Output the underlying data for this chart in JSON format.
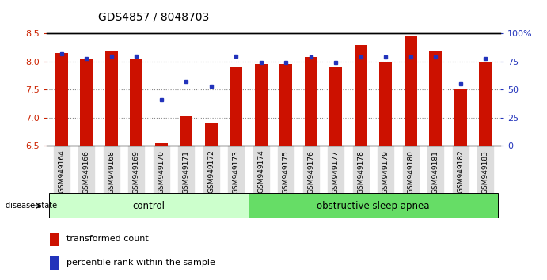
{
  "title": "GDS4857 / 8048703",
  "samples": [
    "GSM949164",
    "GSM949166",
    "GSM949168",
    "GSM949169",
    "GSM949170",
    "GSM949171",
    "GSM949172",
    "GSM949173",
    "GSM949174",
    "GSM949175",
    "GSM949176",
    "GSM949177",
    "GSM949178",
    "GSM949179",
    "GSM949180",
    "GSM949181",
    "GSM949182",
    "GSM949183"
  ],
  "red_values": [
    8.15,
    8.05,
    8.2,
    8.05,
    6.55,
    7.02,
    6.9,
    7.9,
    7.95,
    7.95,
    8.08,
    7.9,
    8.3,
    8.0,
    8.47,
    8.2,
    7.5,
    8.0
  ],
  "blue_pcts": [
    82,
    78,
    80,
    80,
    41,
    57,
    53,
    80,
    74,
    74,
    79,
    74,
    79,
    79,
    79,
    79,
    55,
    78
  ],
  "ylim": [
    6.5,
    8.5
  ],
  "yticks": [
    6.5,
    7.0,
    7.5,
    8.0,
    8.5
  ],
  "right_yticks": [
    0,
    25,
    50,
    75,
    100
  ],
  "right_ylabels": [
    "0",
    "25",
    "50",
    "75",
    "100%"
  ],
  "control_count": 8,
  "group_labels": [
    "control",
    "obstructive sleep apnea"
  ],
  "group_colors": [
    "#ccffcc",
    "#66dd66"
  ],
  "bar_color": "#cc1100",
  "dot_color": "#2233bb",
  "grid_color": "#888888",
  "bg_color": "#ffffff",
  "bar_width": 0.5,
  "label_color_red": "#cc2200",
  "label_color_blue": "#2233bb",
  "tick_label_bg": "#dddddd"
}
